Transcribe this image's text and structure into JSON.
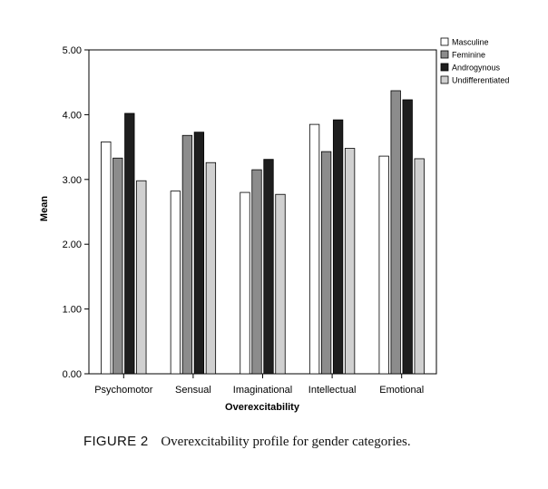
{
  "caption": {
    "figure_number": "FIGURE 2",
    "text": "Overexcitability profile for gender categories."
  },
  "chart_data": {
    "type": "bar",
    "title": "",
    "xlabel": "Overexcitability",
    "ylabel": "Mean",
    "ylim": [
      0,
      5
    ],
    "yticks": [
      "0.00",
      "1.00",
      "2.00",
      "3.00",
      "4.00",
      "5.00"
    ],
    "grid": false,
    "legend_position": "top-right",
    "categories": [
      "Psychomotor",
      "Sensual",
      "Imaginational",
      "Intellectual",
      "Emotional"
    ],
    "series": [
      {
        "name": "Masculine",
        "color": "#ffffff",
        "values": [
          3.58,
          2.82,
          2.8,
          3.85,
          3.36
        ]
      },
      {
        "name": "Feminine",
        "color": "#8c8c8c",
        "values": [
          3.33,
          3.68,
          3.15,
          3.43,
          4.37
        ]
      },
      {
        "name": "Androgynous",
        "color": "#1e1e1e",
        "values": [
          4.02,
          3.73,
          3.31,
          3.92,
          4.23
        ]
      },
      {
        "name": "Undifferentiated",
        "color": "#d0d0d0",
        "values": [
          2.98,
          3.26,
          2.77,
          3.48,
          3.32
        ]
      }
    ]
  }
}
